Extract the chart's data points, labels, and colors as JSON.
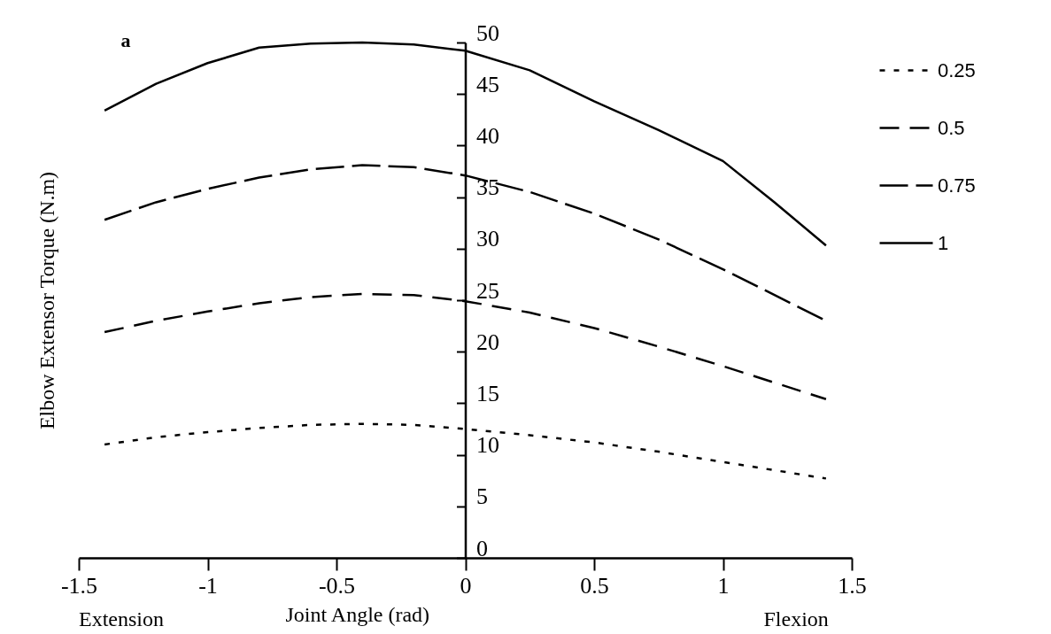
{
  "chart_data": {
    "type": "line",
    "xlabel": "Joint Angle (rad)",
    "ylabel": "Elbow Extensor Torque (N.m)",
    "annotations": [
      "a",
      "Extension",
      "Flexion"
    ],
    "x": [
      -1.4,
      -1.2,
      -1,
      -0.8,
      -0.6,
      -0.4,
      -0.2,
      0,
      0.25,
      0.5,
      0.75,
      1,
      1.2,
      1.4
    ],
    "series": [
      {
        "name": "0.25",
        "color": "#000000",
        "line_style": "dotted",
        "values": [
          11,
          11.7,
          12.2,
          12.6,
          12.9,
          13,
          12.9,
          12.5,
          11.9,
          11.2,
          10.3,
          9.3,
          8.5,
          7.7
        ]
      },
      {
        "name": "0.5",
        "color": "#000000",
        "line_style": "dashed",
        "values": [
          21.9,
          23,
          23.9,
          24.7,
          25.3,
          25.6,
          25.5,
          24.9,
          23.8,
          22.3,
          20.5,
          18.6,
          17,
          15.4
        ]
      },
      {
        "name": "0.75",
        "color": "#000000",
        "line_style": "dashed",
        "values": [
          32.8,
          34.5,
          35.8,
          36.9,
          37.7,
          38.1,
          37.9,
          37.1,
          35.5,
          33.4,
          30.9,
          28,
          25.5,
          23
        ]
      },
      {
        "name": "1",
        "color": "#000000",
        "line_style": "solid",
        "values": [
          43.4,
          46,
          48,
          49.5,
          49.9,
          50,
          49.8,
          49.2,
          47.3,
          44.3,
          41.5,
          38.5,
          34.5,
          30.3
        ]
      }
    ],
    "xlim": [
      -1.5,
      1.5
    ],
    "ylim": [
      0,
      50
    ],
    "xticks": [
      -1.5,
      -1,
      -0.5,
      0,
      0.5,
      1,
      1.5
    ],
    "yticks": [
      0,
      5,
      10,
      15,
      20,
      25,
      30,
      35,
      40,
      45,
      50
    ],
    "grid": false,
    "legend": "top right"
  }
}
